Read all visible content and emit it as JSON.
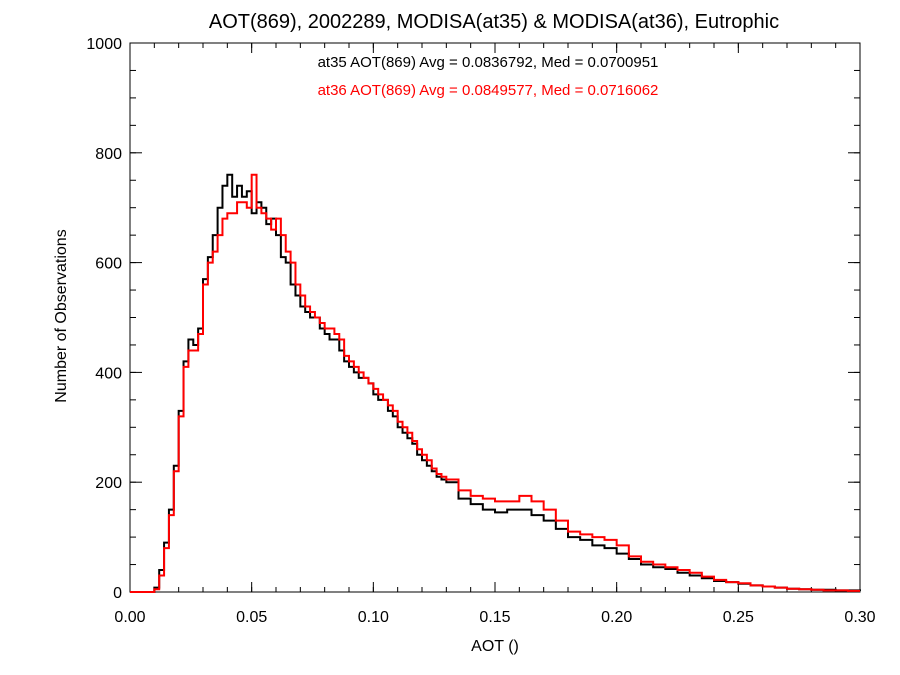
{
  "chart_data": {
    "type": "line",
    "title": "AOT(869), 2002289, MODISA(at35) & MODISA(at36), Eutrophic",
    "xlabel": "AOT ()",
    "ylabel": "Number of Observations",
    "xlim": [
      0.0,
      0.3
    ],
    "ylim": [
      0,
      1000
    ],
    "x_ticks": [
      "0.00",
      "0.05",
      "0.10",
      "0.15",
      "0.20",
      "0.25",
      "0.30"
    ],
    "y_ticks": [
      "0",
      "200",
      "400",
      "600",
      "800",
      "1000"
    ],
    "grid": false,
    "annotations": [
      {
        "text": "at35 AOT(869) Avg = 0.0836792, Med = 0.0700951",
        "color": "#000000"
      },
      {
        "text": "at36 AOT(869) Avg = 0.0849577, Med = 0.0716062",
        "color": "#ff0000"
      }
    ],
    "series": [
      {
        "color": "#000000",
        "x": [
          0.0,
          0.005,
          0.01,
          0.012,
          0.014,
          0.016,
          0.018,
          0.02,
          0.022,
          0.024,
          0.026,
          0.028,
          0.03,
          0.032,
          0.034,
          0.036,
          0.038,
          0.04,
          0.042,
          0.044,
          0.046,
          0.048,
          0.05,
          0.052,
          0.054,
          0.056,
          0.058,
          0.06,
          0.062,
          0.064,
          0.066,
          0.068,
          0.07,
          0.072,
          0.074,
          0.076,
          0.078,
          0.08,
          0.082,
          0.084,
          0.086,
          0.088,
          0.09,
          0.092,
          0.094,
          0.096,
          0.098,
          0.1,
          0.102,
          0.104,
          0.106,
          0.108,
          0.11,
          0.112,
          0.114,
          0.116,
          0.118,
          0.12,
          0.122,
          0.124,
          0.126,
          0.128,
          0.13,
          0.135,
          0.14,
          0.145,
          0.15,
          0.155,
          0.16,
          0.165,
          0.17,
          0.175,
          0.18,
          0.185,
          0.19,
          0.195,
          0.2,
          0.205,
          0.21,
          0.215,
          0.22,
          0.225,
          0.23,
          0.235,
          0.24,
          0.245,
          0.25,
          0.255,
          0.26,
          0.265,
          0.27,
          0.275,
          0.28,
          0.285,
          0.29,
          0.295,
          0.3
        ],
        "values": [
          0,
          0,
          8,
          40,
          90,
          150,
          230,
          330,
          420,
          460,
          450,
          480,
          570,
          610,
          650,
          700,
          740,
          760,
          720,
          740,
          720,
          730,
          690,
          710,
          700,
          670,
          680,
          650,
          610,
          600,
          560,
          540,
          520,
          510,
          500,
          500,
          480,
          470,
          460,
          460,
          440,
          420,
          410,
          400,
          390,
          390,
          380,
          360,
          350,
          350,
          330,
          320,
          300,
          290,
          280,
          270,
          250,
          240,
          230,
          220,
          210,
          205,
          200,
          170,
          160,
          150,
          145,
          150,
          150,
          140,
          130,
          115,
          100,
          95,
          85,
          80,
          70,
          60,
          50,
          45,
          42,
          35,
          30,
          25,
          20,
          18,
          15,
          12,
          10,
          8,
          6,
          5,
          4,
          4,
          3,
          3,
          2
        ]
      },
      {
        "color": "#ff0000",
        "x": [
          0.0,
          0.005,
          0.01,
          0.012,
          0.014,
          0.016,
          0.018,
          0.02,
          0.022,
          0.024,
          0.026,
          0.028,
          0.03,
          0.032,
          0.034,
          0.036,
          0.038,
          0.04,
          0.042,
          0.044,
          0.046,
          0.048,
          0.05,
          0.052,
          0.054,
          0.056,
          0.058,
          0.06,
          0.062,
          0.064,
          0.066,
          0.068,
          0.07,
          0.072,
          0.074,
          0.076,
          0.078,
          0.08,
          0.082,
          0.084,
          0.086,
          0.088,
          0.09,
          0.092,
          0.094,
          0.096,
          0.098,
          0.1,
          0.102,
          0.104,
          0.106,
          0.108,
          0.11,
          0.112,
          0.114,
          0.116,
          0.118,
          0.12,
          0.122,
          0.124,
          0.126,
          0.128,
          0.13,
          0.135,
          0.14,
          0.145,
          0.15,
          0.155,
          0.16,
          0.165,
          0.17,
          0.175,
          0.18,
          0.185,
          0.19,
          0.195,
          0.2,
          0.205,
          0.21,
          0.215,
          0.22,
          0.225,
          0.23,
          0.235,
          0.24,
          0.245,
          0.25,
          0.255,
          0.26,
          0.265,
          0.27,
          0.275,
          0.28,
          0.285,
          0.29,
          0.295,
          0.3
        ],
        "values": [
          0,
          0,
          5,
          30,
          80,
          140,
          220,
          320,
          410,
          440,
          440,
          470,
          560,
          600,
          620,
          650,
          680,
          690,
          690,
          710,
          710,
          700,
          760,
          700,
          690,
          680,
          660,
          680,
          650,
          620,
          600,
          560,
          540,
          520,
          510,
          500,
          490,
          480,
          480,
          470,
          460,
          430,
          420,
          410,
          400,
          390,
          380,
          370,
          360,
          350,
          340,
          330,
          310,
          300,
          290,
          275,
          260,
          250,
          240,
          225,
          215,
          210,
          205,
          185,
          175,
          170,
          165,
          165,
          175,
          165,
          150,
          130,
          110,
          105,
          100,
          95,
          85,
          65,
          55,
          50,
          45,
          40,
          35,
          28,
          22,
          18,
          16,
          12,
          10,
          8,
          6,
          5,
          4,
          3,
          3,
          2,
          2
        ]
      }
    ]
  }
}
